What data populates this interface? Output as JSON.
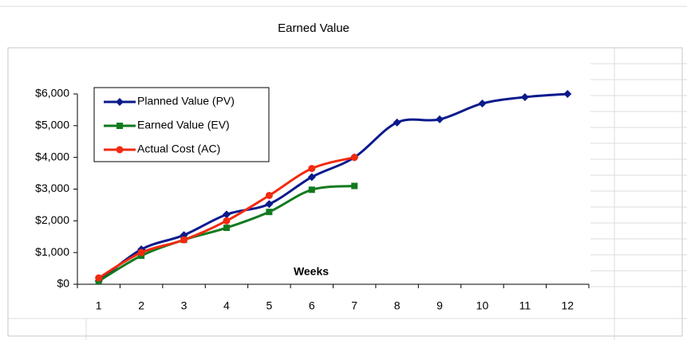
{
  "chart_data": {
    "type": "line",
    "title": "Earned Value",
    "x_label": "Weeks",
    "categories": [
      "1",
      "2",
      "3",
      "4",
      "5",
      "6",
      "7",
      "8",
      "9",
      "10",
      "11",
      "12"
    ],
    "series": [
      {
        "name": "Planned Value (PV)",
        "color": "#0a1a8c",
        "marker": "diamond",
        "values": [
          100,
          1100,
          1550,
          2200,
          2530,
          3380,
          4000,
          5100,
          5200,
          5700,
          5900,
          6000
        ]
      },
      {
        "name": "Earned Value (EV)",
        "color": "#127a1e",
        "marker": "square",
        "values": [
          100,
          900,
          1400,
          1780,
          2280,
          2980,
          3100,
          null,
          null,
          null,
          null,
          null
        ]
      },
      {
        "name": "Actual Cost (AC)",
        "color": "#f22a10",
        "marker": "circle",
        "values": [
          200,
          1000,
          1400,
          2000,
          2800,
          3650,
          4000,
          null,
          null,
          null,
          null,
          null
        ]
      }
    ],
    "ylim": [
      0,
      6000
    ],
    "yticks": [
      {
        "value": 0,
        "label": "$0"
      },
      {
        "value": 1000,
        "label": "$1,000"
      },
      {
        "value": 2000,
        "label": "$2,000"
      },
      {
        "value": 3000,
        "label": "$3,000"
      },
      {
        "value": 4000,
        "label": "$4,000"
      },
      {
        "value": 5000,
        "label": "$5,000"
      },
      {
        "value": 6000,
        "label": "$6,000"
      }
    ],
    "legend": "upper left",
    "grid": false
  }
}
